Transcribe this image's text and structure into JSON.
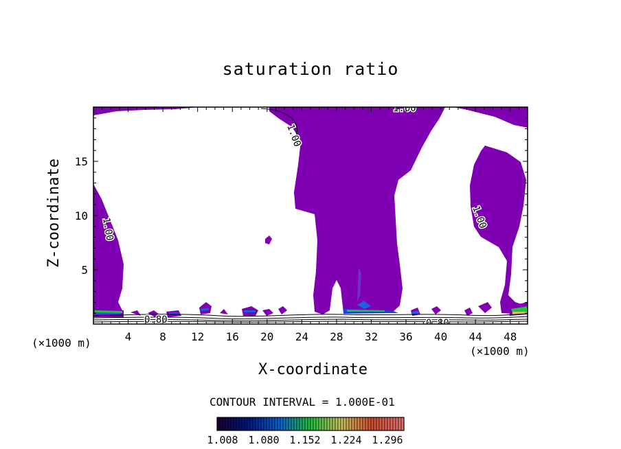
{
  "chart_data": {
    "type": "contour",
    "title": "saturation ratio",
    "xlabel": "X-coordinate",
    "ylabel": "Z-coordinate",
    "x_unit_label_left": "(×1000 m)",
    "x_unit_label_right": "(×1000 m)",
    "xlim": [
      0,
      50
    ],
    "ylim": [
      0,
      20
    ],
    "x_ticks": [
      "4",
      "8",
      "12",
      "16",
      "20",
      "24",
      "28",
      "32",
      "36",
      "40",
      "44",
      "48"
    ],
    "y_ticks": [
      "5",
      "10",
      "15"
    ],
    "contour_interval_label": "CONTOUR INTERVAL = 1.000E-01",
    "contour_labels": [
      "1.00",
      "1.00",
      "1.00",
      "1.00",
      "0.80",
      "0.80",
      "1.00",
      "1.00"
    ],
    "colorbar": {
      "tick_labels": [
        "1.008",
        "1.080",
        "1.152",
        "1.224",
        "1.296"
      ],
      "colors": [
        "#1a0030",
        "#001a80",
        "#1060d0",
        "#20c040",
        "#c8c060",
        "#d05030",
        "#e07070"
      ]
    },
    "fill_color": "#7f00b2",
    "grid": false,
    "legend": "colorbar-bottom"
  }
}
